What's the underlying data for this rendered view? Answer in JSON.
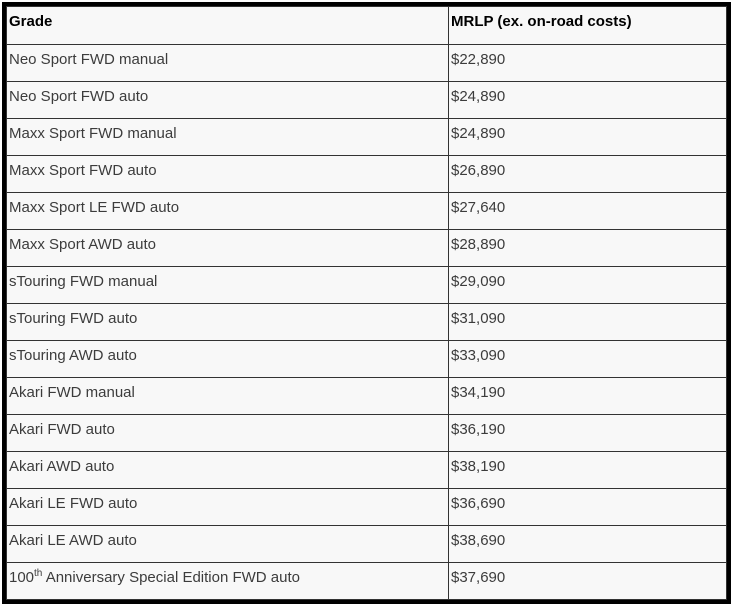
{
  "table": {
    "header": {
      "grade": "Grade",
      "mrlp": "MRLP (ex. on-road costs)"
    },
    "rows": [
      {
        "grade": "Neo Sport FWD manual",
        "price": "$22,890"
      },
      {
        "grade": "Neo Sport FWD auto",
        "price": "$24,890"
      },
      {
        "grade": "Maxx Sport FWD manual",
        "price": "$24,890"
      },
      {
        "grade": "Maxx Sport FWD auto",
        "price": "$26,890"
      },
      {
        "grade": "Maxx Sport LE FWD auto",
        "price": "$27,640"
      },
      {
        "grade": "Maxx Sport AWD auto",
        "price": "$28,890"
      },
      {
        "grade": "sTouring FWD manual",
        "price": "$29,090"
      },
      {
        "grade": "sTouring FWD auto",
        "price": "$31,090"
      },
      {
        "grade": "sTouring AWD auto",
        "price": "$33,090"
      },
      {
        "grade": "Akari FWD manual",
        "price": "$34,190"
      },
      {
        "grade": "Akari FWD auto",
        "price": "$36,190"
      },
      {
        "grade": "Akari AWD auto",
        "price": "$38,190"
      },
      {
        "grade": "Akari LE FWD auto",
        "price": "$36,690"
      },
      {
        "grade": "Akari LE AWD auto",
        "price": "$38,690"
      },
      {
        "grade_base": "100",
        "grade_sup": "th",
        "grade_rest": " Anniversary Special Edition FWD auto",
        "price": "$37,690"
      }
    ],
    "colors": {
      "outer_border": "#000000",
      "inner_border": "#333333",
      "cell_background": "#f8f8f8",
      "header_text": "#000000",
      "body_text": "#3c3c3c"
    }
  }
}
